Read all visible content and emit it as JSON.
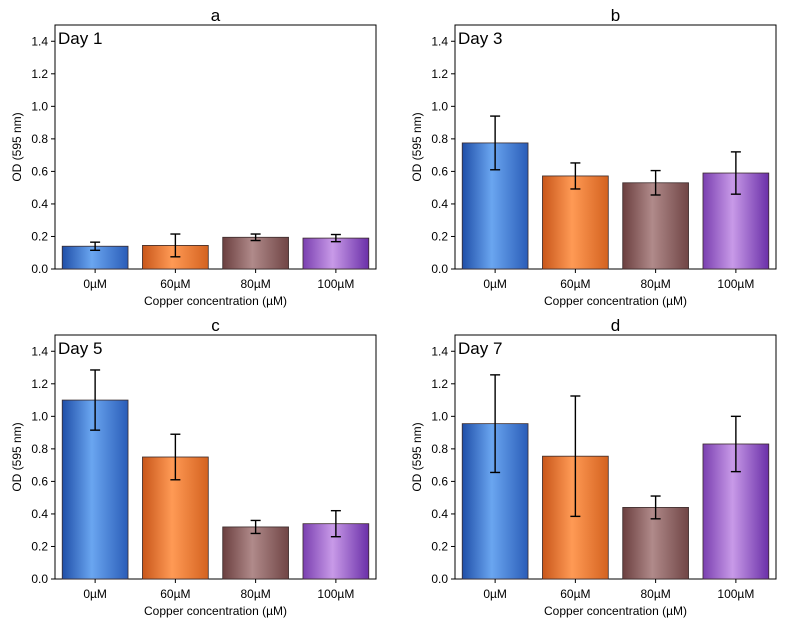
{
  "chart_data": [
    {
      "type": "bar",
      "panel": "a",
      "day_label": "Day 1",
      "xlabel": "Copper concentration (µM)",
      "ylabel": "OD (595 nm)",
      "ylim": [
        0,
        1.5
      ],
      "yticks": [
        "0.0",
        "0.2",
        "0.4",
        "0.6",
        "0.8",
        "1.0",
        "1.2",
        "1.4"
      ],
      "categories": [
        "0µM",
        "60µM",
        "80µM",
        "100µM"
      ],
      "values": [
        0.14,
        0.145,
        0.195,
        0.19
      ],
      "errors": [
        0.025,
        0.07,
        0.02,
        0.022
      ],
      "colors": [
        "#4a86d8",
        "#f07a35",
        "#8e6464",
        "#9b5fcf"
      ]
    },
    {
      "type": "bar",
      "panel": "b",
      "day_label": "Day 3",
      "xlabel": "Copper concentration (µM)",
      "ylabel": "OD (595 nm)",
      "ylim": [
        0,
        1.5
      ],
      "yticks": [
        "0.0",
        "0.2",
        "0.4",
        "0.6",
        "0.8",
        "1.0",
        "1.2",
        "1.4"
      ],
      "categories": [
        "0µM",
        "60µM",
        "80µM",
        "100µM"
      ],
      "values": [
        0.775,
        0.572,
        0.53,
        0.59
      ],
      "errors": [
        0.165,
        0.08,
        0.075,
        0.13
      ],
      "colors": [
        "#4a86d8",
        "#f07a35",
        "#8e6464",
        "#9b5fcf"
      ]
    },
    {
      "type": "bar",
      "panel": "c",
      "day_label": "Day 5",
      "xlabel": "Copper concentration (µM)",
      "ylabel": "OD (595 nm)",
      "ylim": [
        0,
        1.5
      ],
      "yticks": [
        "0.0",
        "0.2",
        "0.4",
        "0.6",
        "0.8",
        "1.0",
        "1.2",
        "1.4"
      ],
      "categories": [
        "0µM",
        "60µM",
        "80µM",
        "100µM"
      ],
      "values": [
        1.1,
        0.75,
        0.32,
        0.34
      ],
      "errors": [
        0.185,
        0.14,
        0.04,
        0.08
      ],
      "colors": [
        "#4a86d8",
        "#f07a35",
        "#8e6464",
        "#9b5fcf"
      ]
    },
    {
      "type": "bar",
      "panel": "d",
      "day_label": "Day 7",
      "xlabel": "Copper concentration (µM)",
      "ylabel": "OD (595 nm)",
      "ylim": [
        0,
        1.5
      ],
      "yticks": [
        "0.0",
        "0.2",
        "0.4",
        "0.6",
        "0.8",
        "1.0",
        "1.2",
        "1.4"
      ],
      "categories": [
        "0µM",
        "60µM",
        "80µM",
        "100µM"
      ],
      "values": [
        0.955,
        0.755,
        0.44,
        0.83
      ],
      "errors": [
        0.3,
        0.37,
        0.07,
        0.17
      ],
      "colors": [
        "#4a86d8",
        "#f07a35",
        "#8e6464",
        "#9b5fcf"
      ]
    }
  ]
}
